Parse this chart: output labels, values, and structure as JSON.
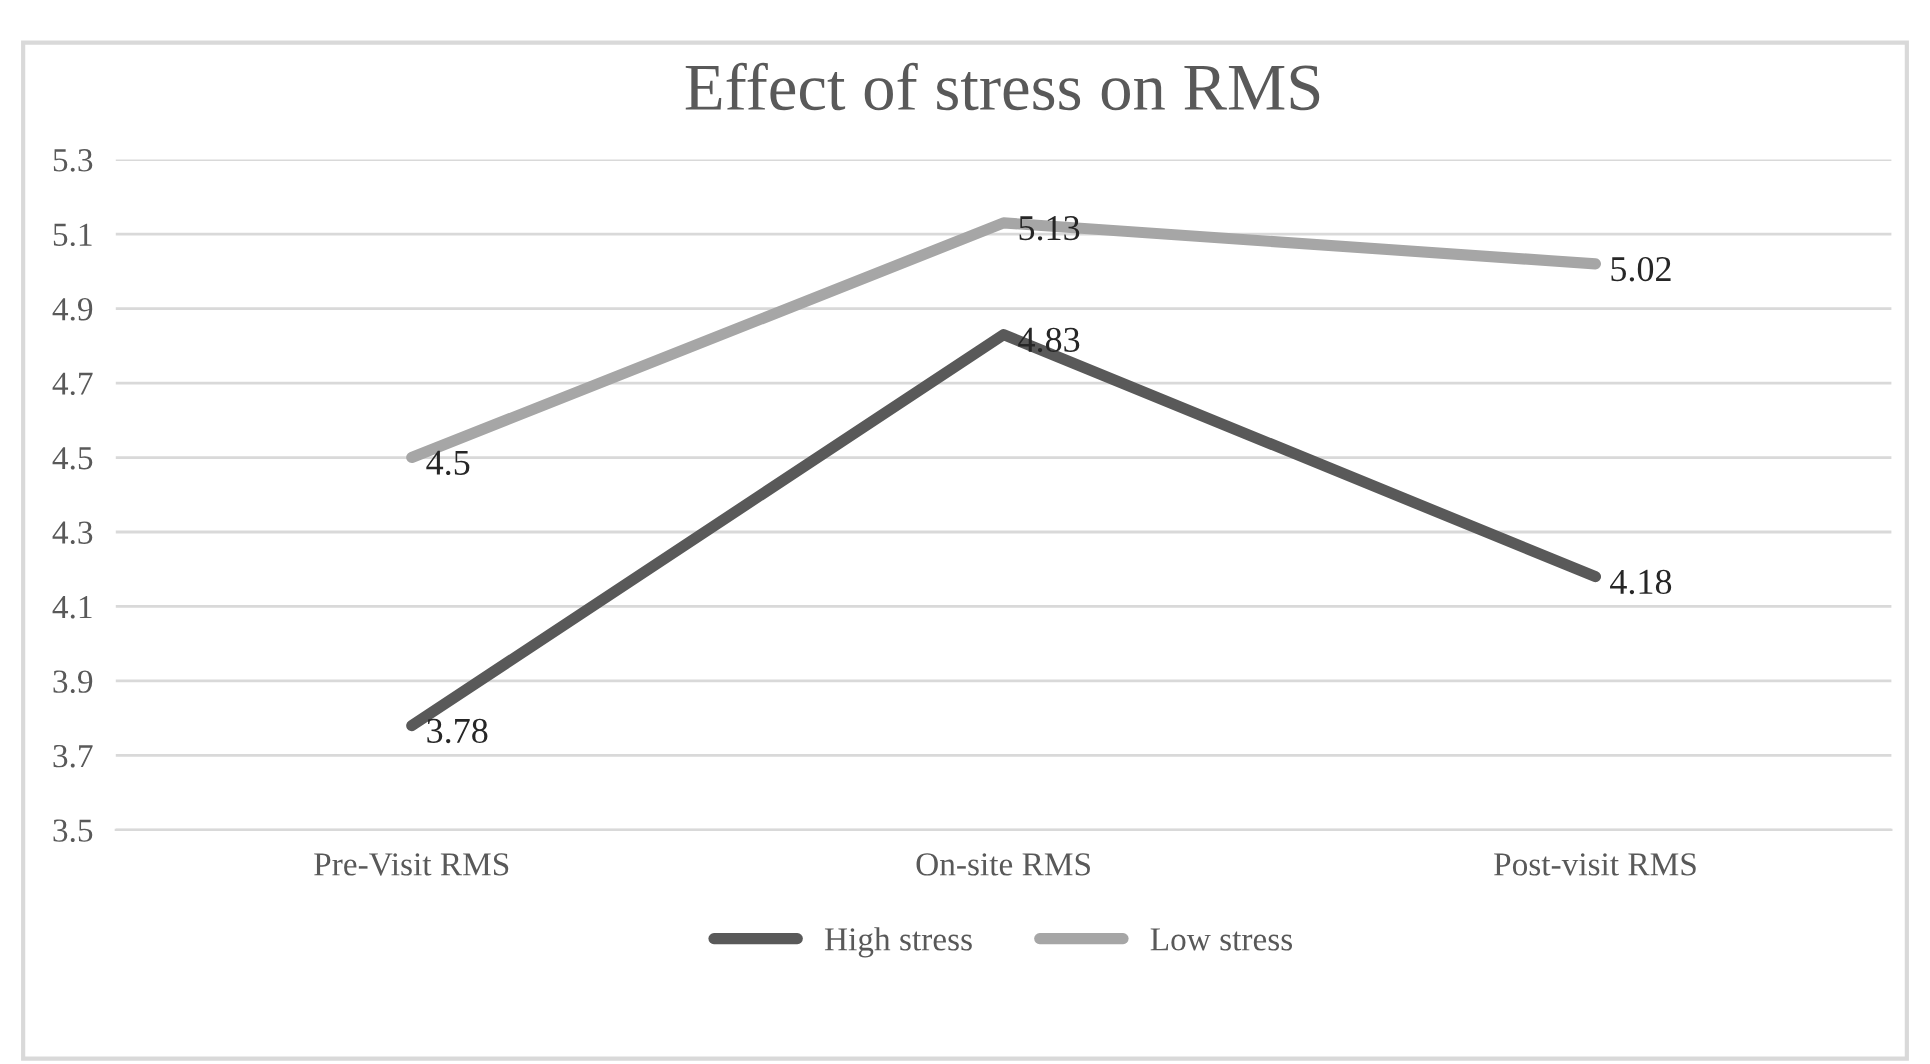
{
  "chart_data": {
    "type": "line",
    "title": "Effect of stress on RMS",
    "categories": [
      "Pre-Visit RMS",
      "On-site RMS",
      "Post-visit RMS"
    ],
    "series": [
      {
        "name": "High stress",
        "color": "#595959",
        "values": [
          3.78,
          4.83,
          4.18
        ]
      },
      {
        "name": "Low stress",
        "color": "#a6a6a6",
        "values": [
          4.5,
          5.13,
          5.02
        ]
      }
    ],
    "ylim": [
      3.5,
      5.3
    ],
    "yticks": [
      3.5,
      3.7,
      3.9,
      4.1,
      4.3,
      4.5,
      4.7,
      4.9,
      5.1,
      5.3
    ],
    "grid": "y",
    "legend": "bottom",
    "data_labels": true,
    "marker": "none",
    "line_style": "solid"
  }
}
